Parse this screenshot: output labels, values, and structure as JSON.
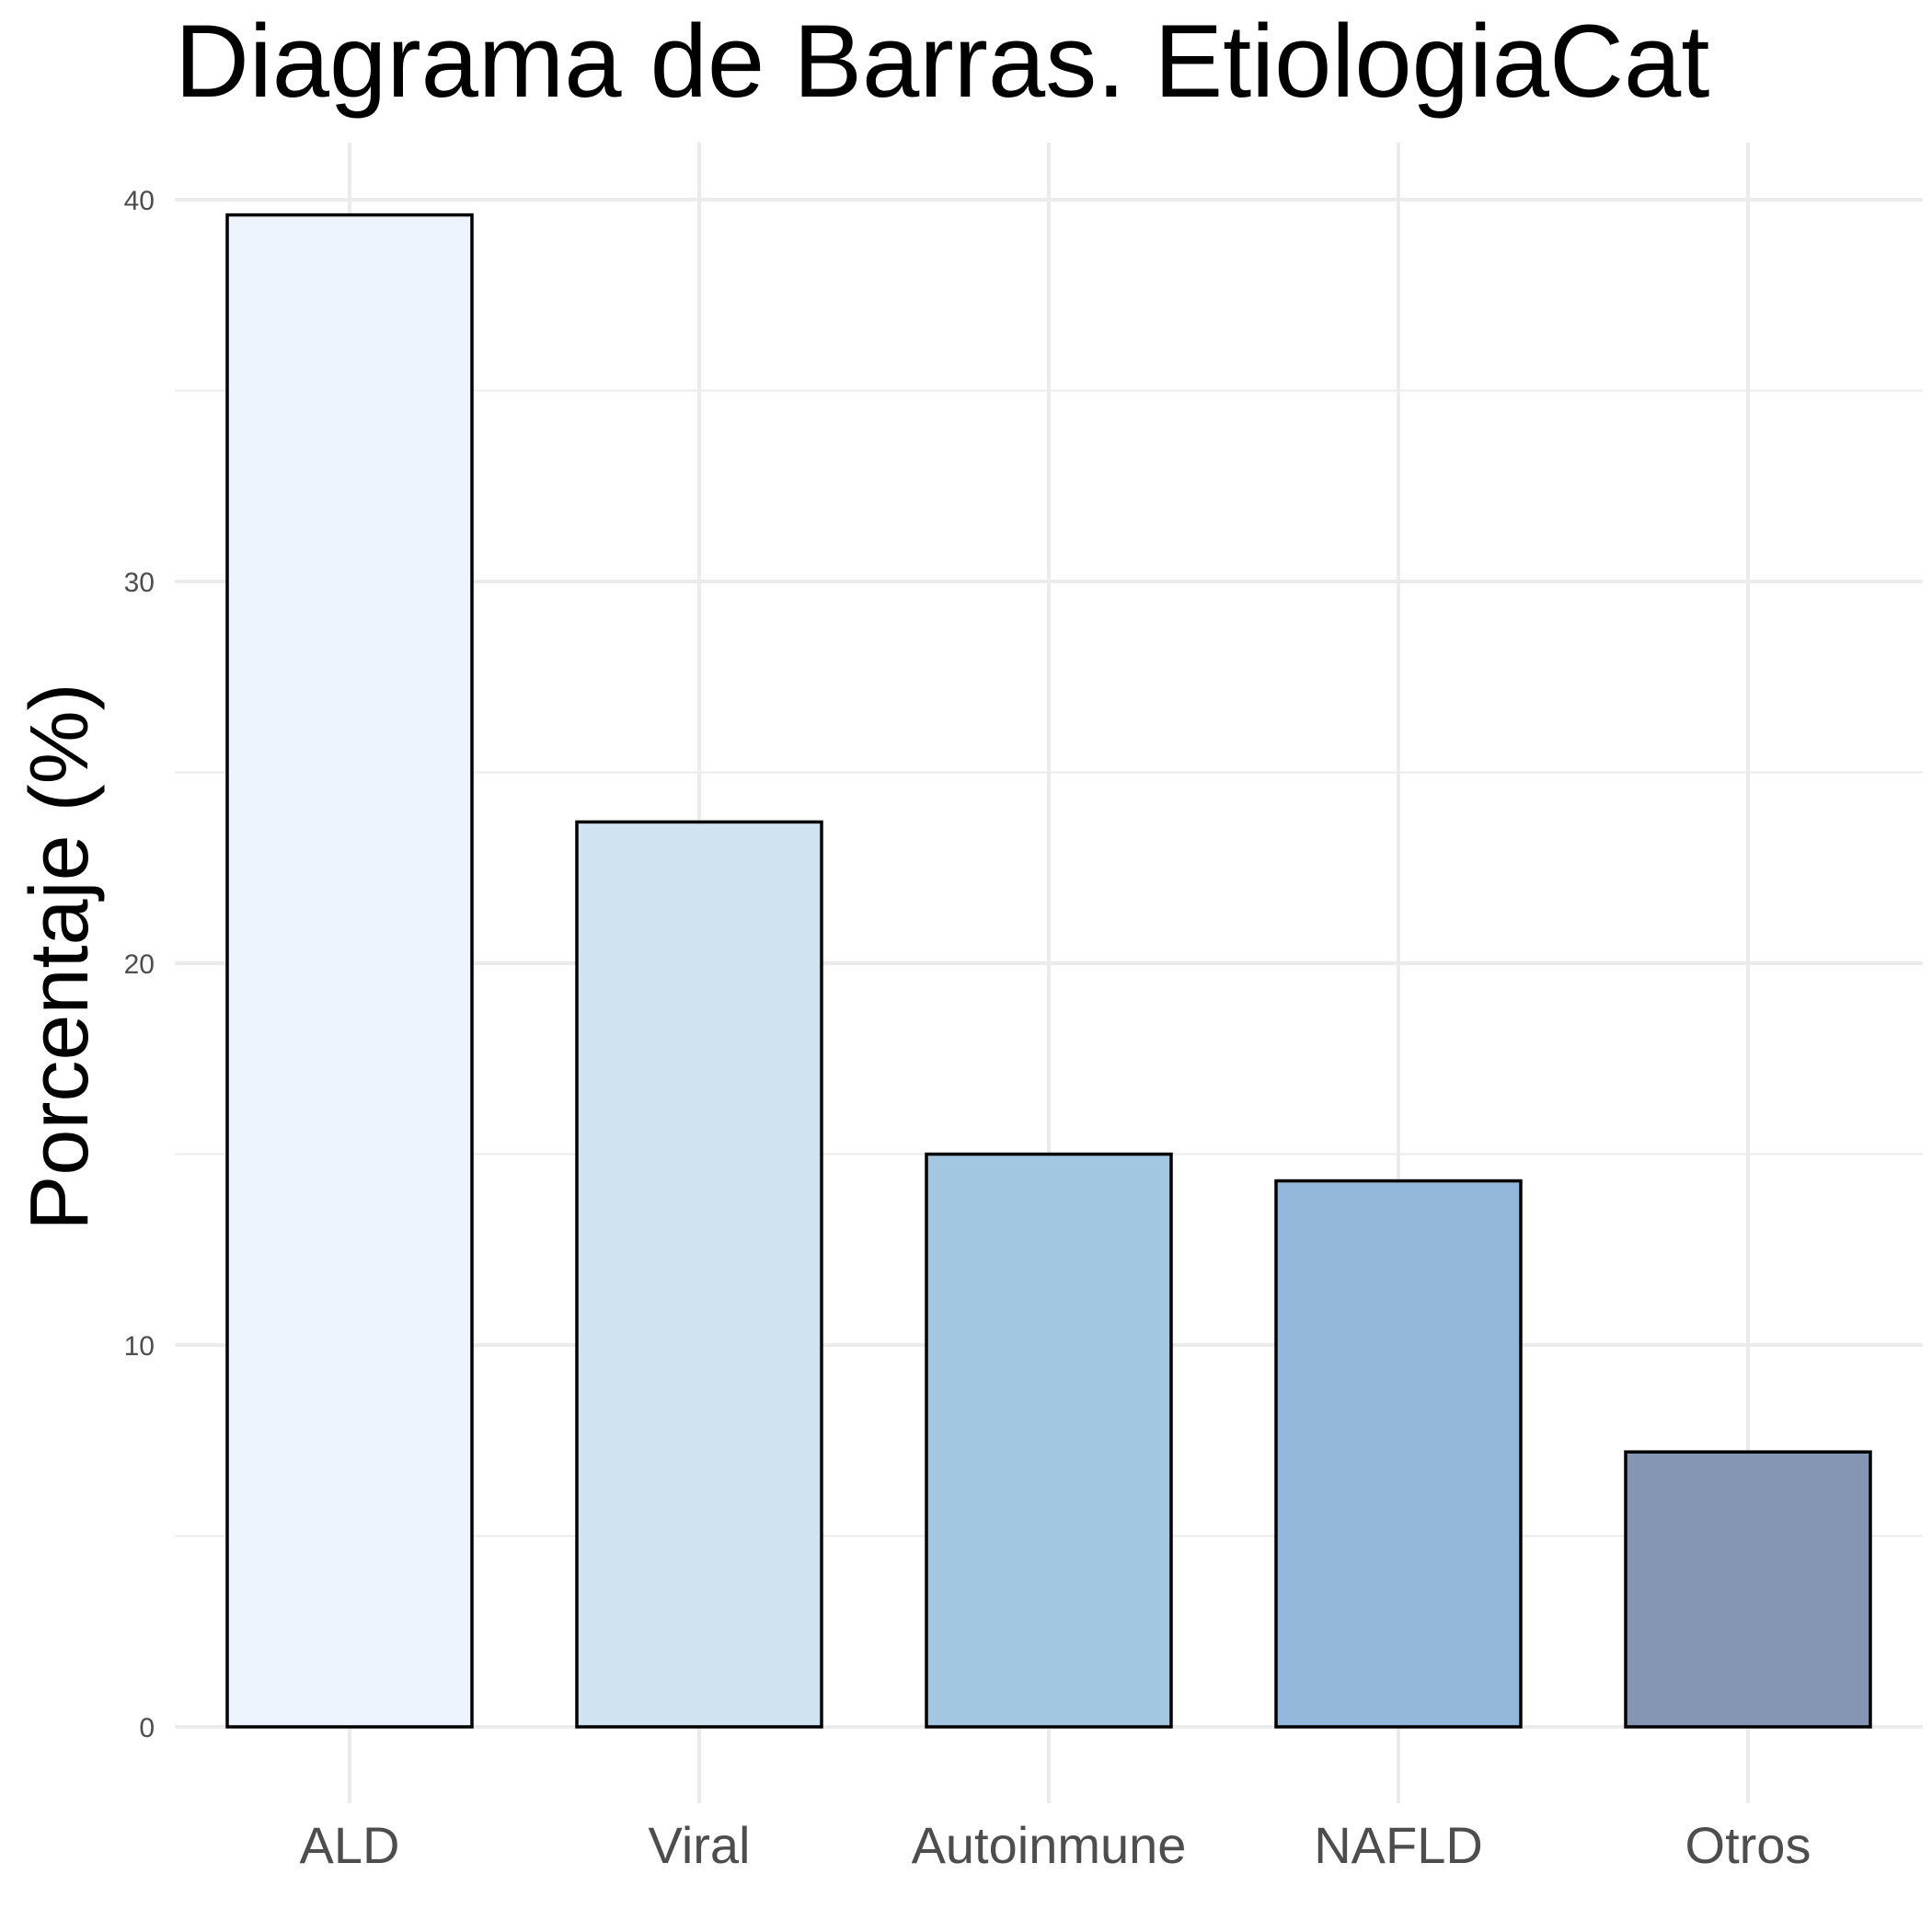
{
  "chart_data": {
    "type": "bar",
    "title": "Diagrama de Barras. EtiologiaCat",
    "xlabel": "",
    "ylabel": "Porcentaje (%)",
    "categories": [
      "ALD",
      "Viral",
      "Autoinmune",
      "NAFLD",
      "Otros"
    ],
    "values": [
      39.6,
      23.7,
      15.0,
      14.3,
      7.2
    ],
    "colors": [
      "#eef4fb",
      "#cfe3f0",
      "#a3c7e1",
      "#93b8db",
      "#8496b3"
    ],
    "ylim": [
      0,
      41.6
    ],
    "yticks": [
      0,
      10,
      20,
      30,
      40
    ],
    "grid": true,
    "legend": "none"
  }
}
